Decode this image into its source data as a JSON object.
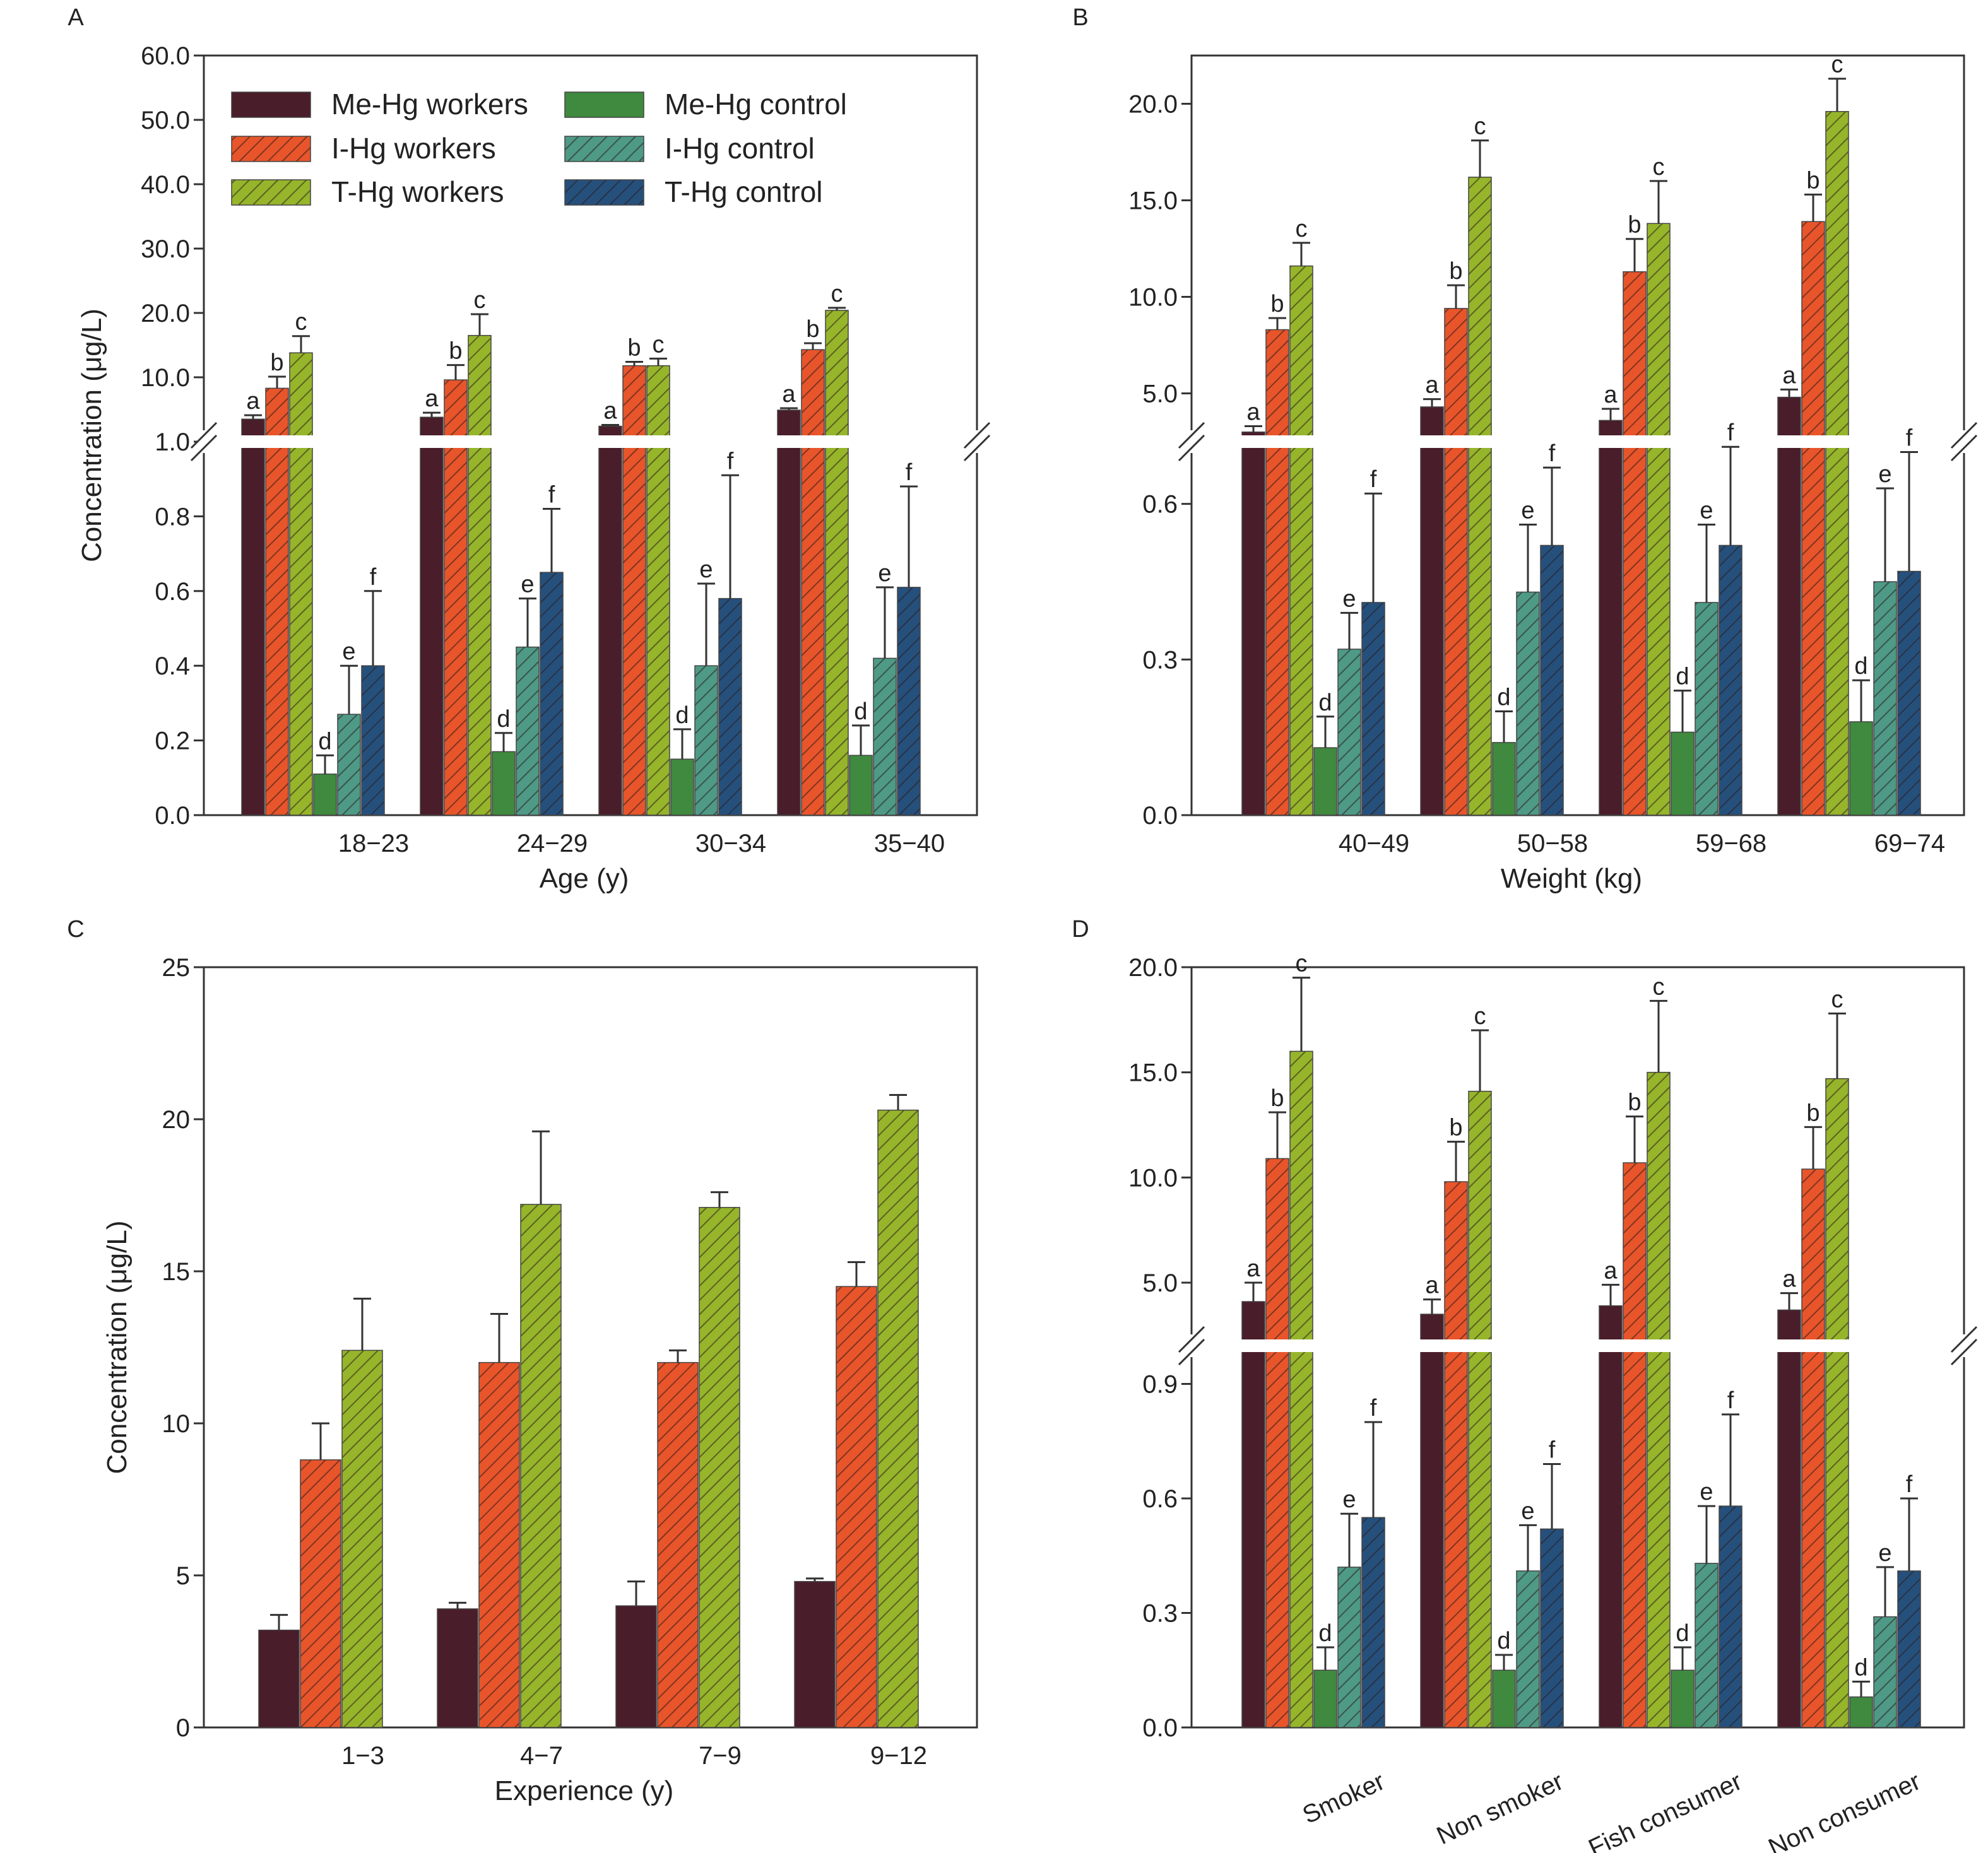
{
  "colors": {
    "me_workers": "#4a1d2a",
    "i_workers": "#e8552b",
    "t_workers": "#96b52b",
    "me_control": "#3f8a3e",
    "i_control": "#4e9a86",
    "t_control": "#26507c"
  },
  "legend": [
    {
      "key": "me_workers",
      "label": "Me-Hg workers",
      "hatched": false
    },
    {
      "key": "i_workers",
      "label": "I-Hg workers",
      "hatched": true
    },
    {
      "key": "t_workers",
      "label": "T-Hg workers",
      "hatched": true
    },
    {
      "key": "me_control",
      "label": "Me-Hg control",
      "hatched": false
    },
    {
      "key": "i_control",
      "label": "I-Hg control",
      "hatched": true
    },
    {
      "key": "t_control",
      "label": "T-Hg control",
      "hatched": true
    }
  ],
  "chart_data": [
    {
      "panel": "A",
      "type": "bar",
      "broken_axis": true,
      "xlabel": "Age (y)",
      "ylabel": "Concentration (μg/L)",
      "categories": [
        "18−23",
        "24−29",
        "30−34",
        "35−40"
      ],
      "lower_ticks": [
        "0.0",
        "0.2",
        "0.4",
        "0.6",
        "0.8",
        "1.0"
      ],
      "upper_ticks": [
        "10.0",
        "20.0",
        "30.0",
        "40.0",
        "50.0",
        "60.0"
      ],
      "lower_range": [
        0,
        1.0
      ],
      "upper_range": [
        0,
        60
      ],
      "series": [
        {
          "key": "me_workers",
          "letter": "a",
          "values": [
            3.5,
            3.8,
            2.4,
            4.9
          ],
          "errors": [
            0.6,
            0.7,
            0.2,
            0.3
          ]
        },
        {
          "key": "i_workers",
          "letter": "b",
          "values": [
            8.3,
            9.6,
            11.8,
            14.3
          ],
          "errors": [
            1.8,
            2.3,
            0.6,
            1.0
          ]
        },
        {
          "key": "t_workers",
          "letter": "c",
          "values": [
            13.8,
            16.5,
            11.8,
            20.4
          ],
          "errors": [
            2.6,
            3.3,
            1.1,
            0.4
          ]
        },
        {
          "key": "me_control",
          "letter": "d",
          "values": [
            0.11,
            0.17,
            0.15,
            0.16
          ],
          "errors": [
            0.05,
            0.05,
            0.08,
            0.08
          ]
        },
        {
          "key": "i_control",
          "letter": "e",
          "values": [
            0.27,
            0.45,
            0.4,
            0.42
          ],
          "errors": [
            0.13,
            0.13,
            0.22,
            0.19
          ]
        },
        {
          "key": "t_control",
          "letter": "f",
          "values": [
            0.4,
            0.65,
            0.58,
            0.61
          ],
          "errors": [
            0.2,
            0.17,
            0.33,
            0.27
          ]
        }
      ]
    },
    {
      "panel": "B",
      "type": "bar",
      "broken_axis": true,
      "xlabel": "Weight (kg)",
      "ylabel": "",
      "categories": [
        "40−49",
        "50−58",
        "59−68",
        "69−74"
      ],
      "lower_ticks": [
        "0.0",
        "0.3",
        "0.6"
      ],
      "upper_ticks": [
        "5.0",
        "10.0",
        "15.0",
        "20.0"
      ],
      "lower_range": [
        0,
        0.72
      ],
      "upper_range": [
        2.5,
        22.5
      ],
      "series": [
        {
          "key": "me_workers",
          "letter": "a",
          "values": [
            3.0,
            4.3,
            3.6,
            4.8
          ],
          "errors": [
            0.3,
            0.4,
            0.6,
            0.4
          ]
        },
        {
          "key": "i_workers",
          "letter": "b",
          "values": [
            8.3,
            9.4,
            11.3,
            13.9
          ],
          "errors": [
            0.6,
            1.2,
            1.7,
            1.4
          ]
        },
        {
          "key": "t_workers",
          "letter": "c",
          "values": [
            11.6,
            16.2,
            13.8,
            19.6
          ],
          "errors": [
            1.2,
            1.9,
            2.2,
            1.7
          ]
        },
        {
          "key": "me_control",
          "letter": "d",
          "values": [
            0.13,
            0.14,
            0.16,
            0.18
          ],
          "errors": [
            0.06,
            0.06,
            0.08,
            0.08
          ]
        },
        {
          "key": "i_control",
          "letter": "e",
          "values": [
            0.32,
            0.43,
            0.41,
            0.45
          ],
          "errors": [
            0.07,
            0.13,
            0.15,
            0.18
          ]
        },
        {
          "key": "t_control",
          "letter": "f",
          "values": [
            0.41,
            0.52,
            0.52,
            0.47
          ],
          "errors": [
            0.21,
            0.15,
            0.19,
            0.23
          ]
        }
      ]
    },
    {
      "panel": "C",
      "type": "bar",
      "broken_axis": false,
      "xlabel": "Experience (y)",
      "ylabel": "Concentration (μg/L)",
      "categories": [
        "1−3",
        "4−7",
        "7−9",
        "9−12"
      ],
      "ticks": [
        "0",
        "5",
        "10",
        "15",
        "20",
        "25"
      ],
      "ylim": [
        0,
        25
      ],
      "series": [
        {
          "key": "me_workers",
          "values": [
            3.2,
            3.9,
            4.0,
            4.8
          ],
          "errors": [
            0.5,
            0.2,
            0.8,
            0.1
          ]
        },
        {
          "key": "i_workers",
          "values": [
            8.8,
            12.0,
            12.0,
            14.5
          ],
          "errors": [
            1.2,
            1.6,
            0.4,
            0.8
          ]
        },
        {
          "key": "t_workers",
          "values": [
            12.4,
            17.2,
            17.1,
            20.3
          ],
          "errors": [
            1.7,
            2.4,
            0.5,
            0.5
          ]
        }
      ]
    },
    {
      "panel": "D",
      "type": "bar",
      "broken_axis": true,
      "xlabel": "",
      "ylabel": "",
      "categories": [
        "Smoker",
        "Non smoker",
        "Fish consumer",
        "Non consumer"
      ],
      "lower_ticks": [
        "0.0",
        "0.3",
        "0.6",
        "0.9"
      ],
      "upper_ticks": [
        "5.0",
        "10.0",
        "15.0",
        "20.0"
      ],
      "lower_range": [
        0,
        1.0
      ],
      "upper_range": [
        2.0,
        20.0
      ],
      "series": [
        {
          "key": "me_workers",
          "letter": "a",
          "values": [
            4.1,
            3.5,
            3.9,
            3.7
          ],
          "errors": [
            0.9,
            0.7,
            1.0,
            0.8
          ]
        },
        {
          "key": "i_workers",
          "letter": "b",
          "values": [
            10.9,
            9.8,
            10.7,
            10.4
          ],
          "errors": [
            2.2,
            1.9,
            2.2,
            2.0
          ]
        },
        {
          "key": "t_workers",
          "letter": "c",
          "values": [
            16.0,
            14.1,
            15.0,
            14.7
          ],
          "errors": [
            3.5,
            2.9,
            3.4,
            3.1
          ]
        },
        {
          "key": "me_control",
          "letter": "d",
          "values": [
            0.15,
            0.15,
            0.15,
            0.08
          ],
          "errors": [
            0.06,
            0.04,
            0.06,
            0.04
          ]
        },
        {
          "key": "i_control",
          "letter": "e",
          "values": [
            0.42,
            0.41,
            0.43,
            0.29
          ],
          "errors": [
            0.14,
            0.12,
            0.15,
            0.13
          ]
        },
        {
          "key": "t_control",
          "letter": "f",
          "values": [
            0.55,
            0.52,
            0.58,
            0.41
          ],
          "errors": [
            0.25,
            0.17,
            0.24,
            0.19
          ]
        }
      ]
    }
  ]
}
